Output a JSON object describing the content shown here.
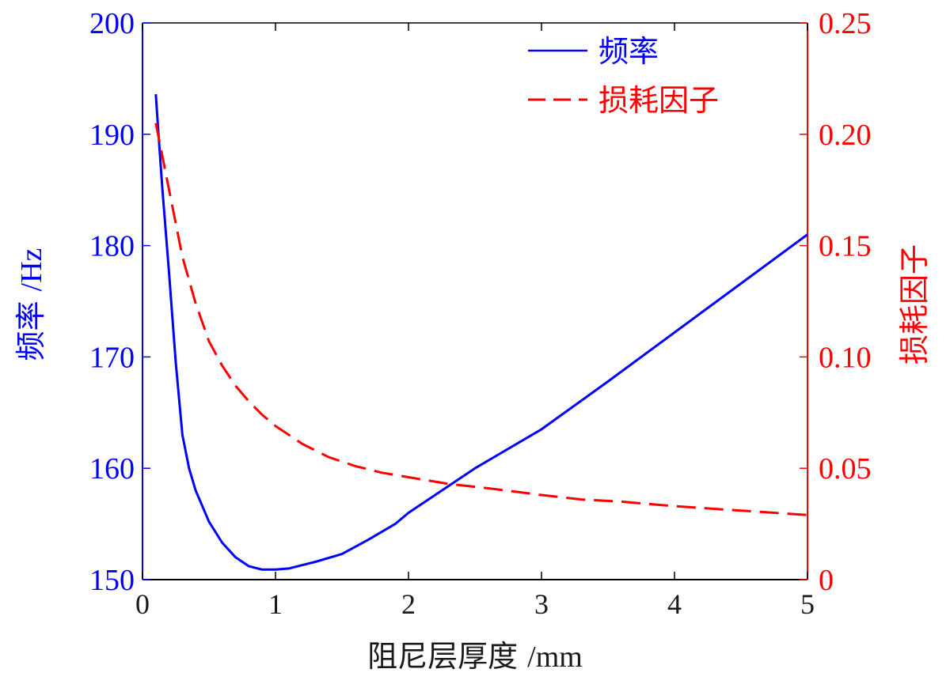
{
  "chart_data": {
    "type": "line",
    "title": "",
    "xlabel": "阻尼层厚度",
    "xlabel_unit": "/mm",
    "ylabel_left": "频率",
    "ylabel_left_unit": "/Hz",
    "ylabel_right": "损耗因子",
    "xlim": [
      0,
      5
    ],
    "ylim_left": [
      150,
      200
    ],
    "ylim_right": [
      0,
      0.25
    ],
    "x_ticks": [
      "0",
      "1",
      "2",
      "3",
      "4",
      "5"
    ],
    "y_left_ticks": [
      "150",
      "160",
      "170",
      "180",
      "190",
      "200"
    ],
    "y_right_ticks": [
      "0",
      "0.05",
      "0.10",
      "0.15",
      "0.20",
      "0.25"
    ],
    "legend_position": "top-right",
    "grid": false,
    "series": [
      {
        "name": "频率",
        "axis": "left",
        "color": "#0000ff",
        "style": "solid",
        "x": [
          0.1,
          0.12,
          0.15,
          0.2,
          0.25,
          0.3,
          0.35,
          0.4,
          0.5,
          0.6,
          0.7,
          0.8,
          0.9,
          1.0,
          1.1,
          1.2,
          1.3,
          1.5,
          1.7,
          1.9,
          2.0,
          2.2,
          2.5,
          3.0,
          3.5,
          4.0,
          4.5,
          5.0
        ],
        "y": [
          193.6,
          190.0,
          185.0,
          177.5,
          169.5,
          163.0,
          160.0,
          158.0,
          155.2,
          153.3,
          152.0,
          151.2,
          150.9,
          150.9,
          151.0,
          151.3,
          151.6,
          152.3,
          153.6,
          155.0,
          156.0,
          157.6,
          160.0,
          163.5,
          167.8,
          172.2,
          176.6,
          181.0
        ]
      },
      {
        "name": "损耗因子",
        "axis": "right",
        "color": "#ff0000",
        "style": "dashed",
        "x": [
          0.1,
          0.15,
          0.2,
          0.25,
          0.3,
          0.4,
          0.5,
          0.6,
          0.7,
          0.8,
          0.9,
          1.0,
          1.2,
          1.4,
          1.6,
          1.8,
          2.0,
          2.3,
          2.6,
          3.0,
          3.3,
          3.6,
          4.0,
          4.5,
          5.0
        ],
        "y": [
          0.205,
          0.19,
          0.175,
          0.16,
          0.145,
          0.124,
          0.107,
          0.096,
          0.087,
          0.08,
          0.074,
          0.069,
          0.061,
          0.055,
          0.051,
          0.048,
          0.046,
          0.043,
          0.041,
          0.038,
          0.036,
          0.035,
          0.033,
          0.031,
          0.029
        ]
      }
    ]
  }
}
